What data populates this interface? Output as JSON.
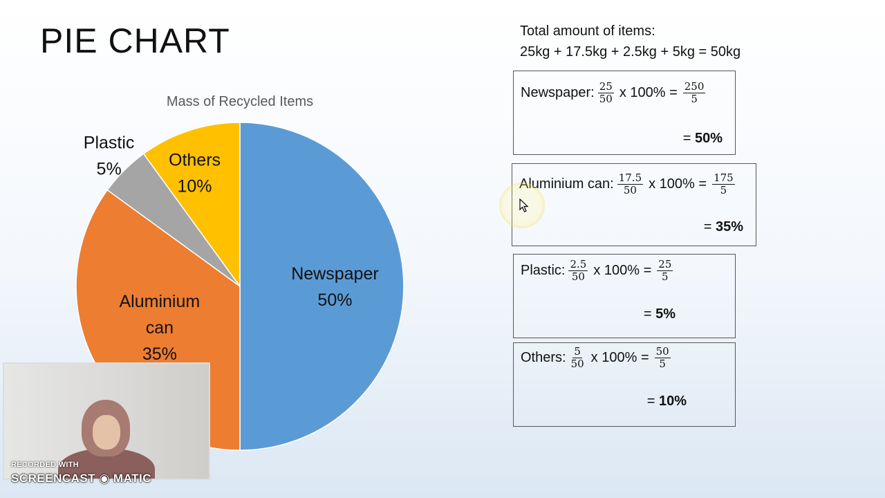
{
  "slide": {
    "title": "PIE CHART"
  },
  "chart_data": {
    "type": "pie",
    "title": "Mass of Recycled Items",
    "slices": [
      {
        "name": "Newspaper",
        "value": 50,
        "label": "50%",
        "color": "#5b9bd5"
      },
      {
        "name": "Aluminium can",
        "value": 35,
        "label": "35%",
        "color": "#ed7d31"
      },
      {
        "name": "Plastic",
        "value": 5,
        "label": "5%",
        "color": "#a5a5a5"
      },
      {
        "name": "Others",
        "value": 10,
        "label": "10%",
        "color": "#ffc000"
      }
    ]
  },
  "calculations": {
    "total_label": "Total amount of items:",
    "total_formula": "25kg + 17.5kg + 2.5kg + 5kg = 50kg",
    "rows": [
      {
        "label": "Newspaper:",
        "num": "25",
        "den": "50",
        "times": "x 100% =",
        "rnum": "250",
        "rden": "5",
        "eq": "=",
        "result": "50%"
      },
      {
        "label": "Aluminium can:",
        "num": "17.5",
        "den": "50",
        "times": "x 100% =",
        "rnum": "175",
        "rden": "5",
        "eq": "=",
        "result": "35%"
      },
      {
        "label": "Plastic:",
        "num": "2.5",
        "den": "50",
        "times": "x 100% =",
        "rnum": "25",
        "rden": "5",
        "eq": "=",
        "result": "5%"
      },
      {
        "label": "Others:",
        "num": "5",
        "den": "50",
        "times": "x 100% =",
        "rnum": "50",
        "rden": "5",
        "eq": "=",
        "result": "10%"
      }
    ]
  },
  "recorder": {
    "line1": "RECORDED WITH",
    "line2": "SCREENCAST ◉ MATIC"
  },
  "icons": {
    "cursor": "cursor-arrow-icon"
  }
}
